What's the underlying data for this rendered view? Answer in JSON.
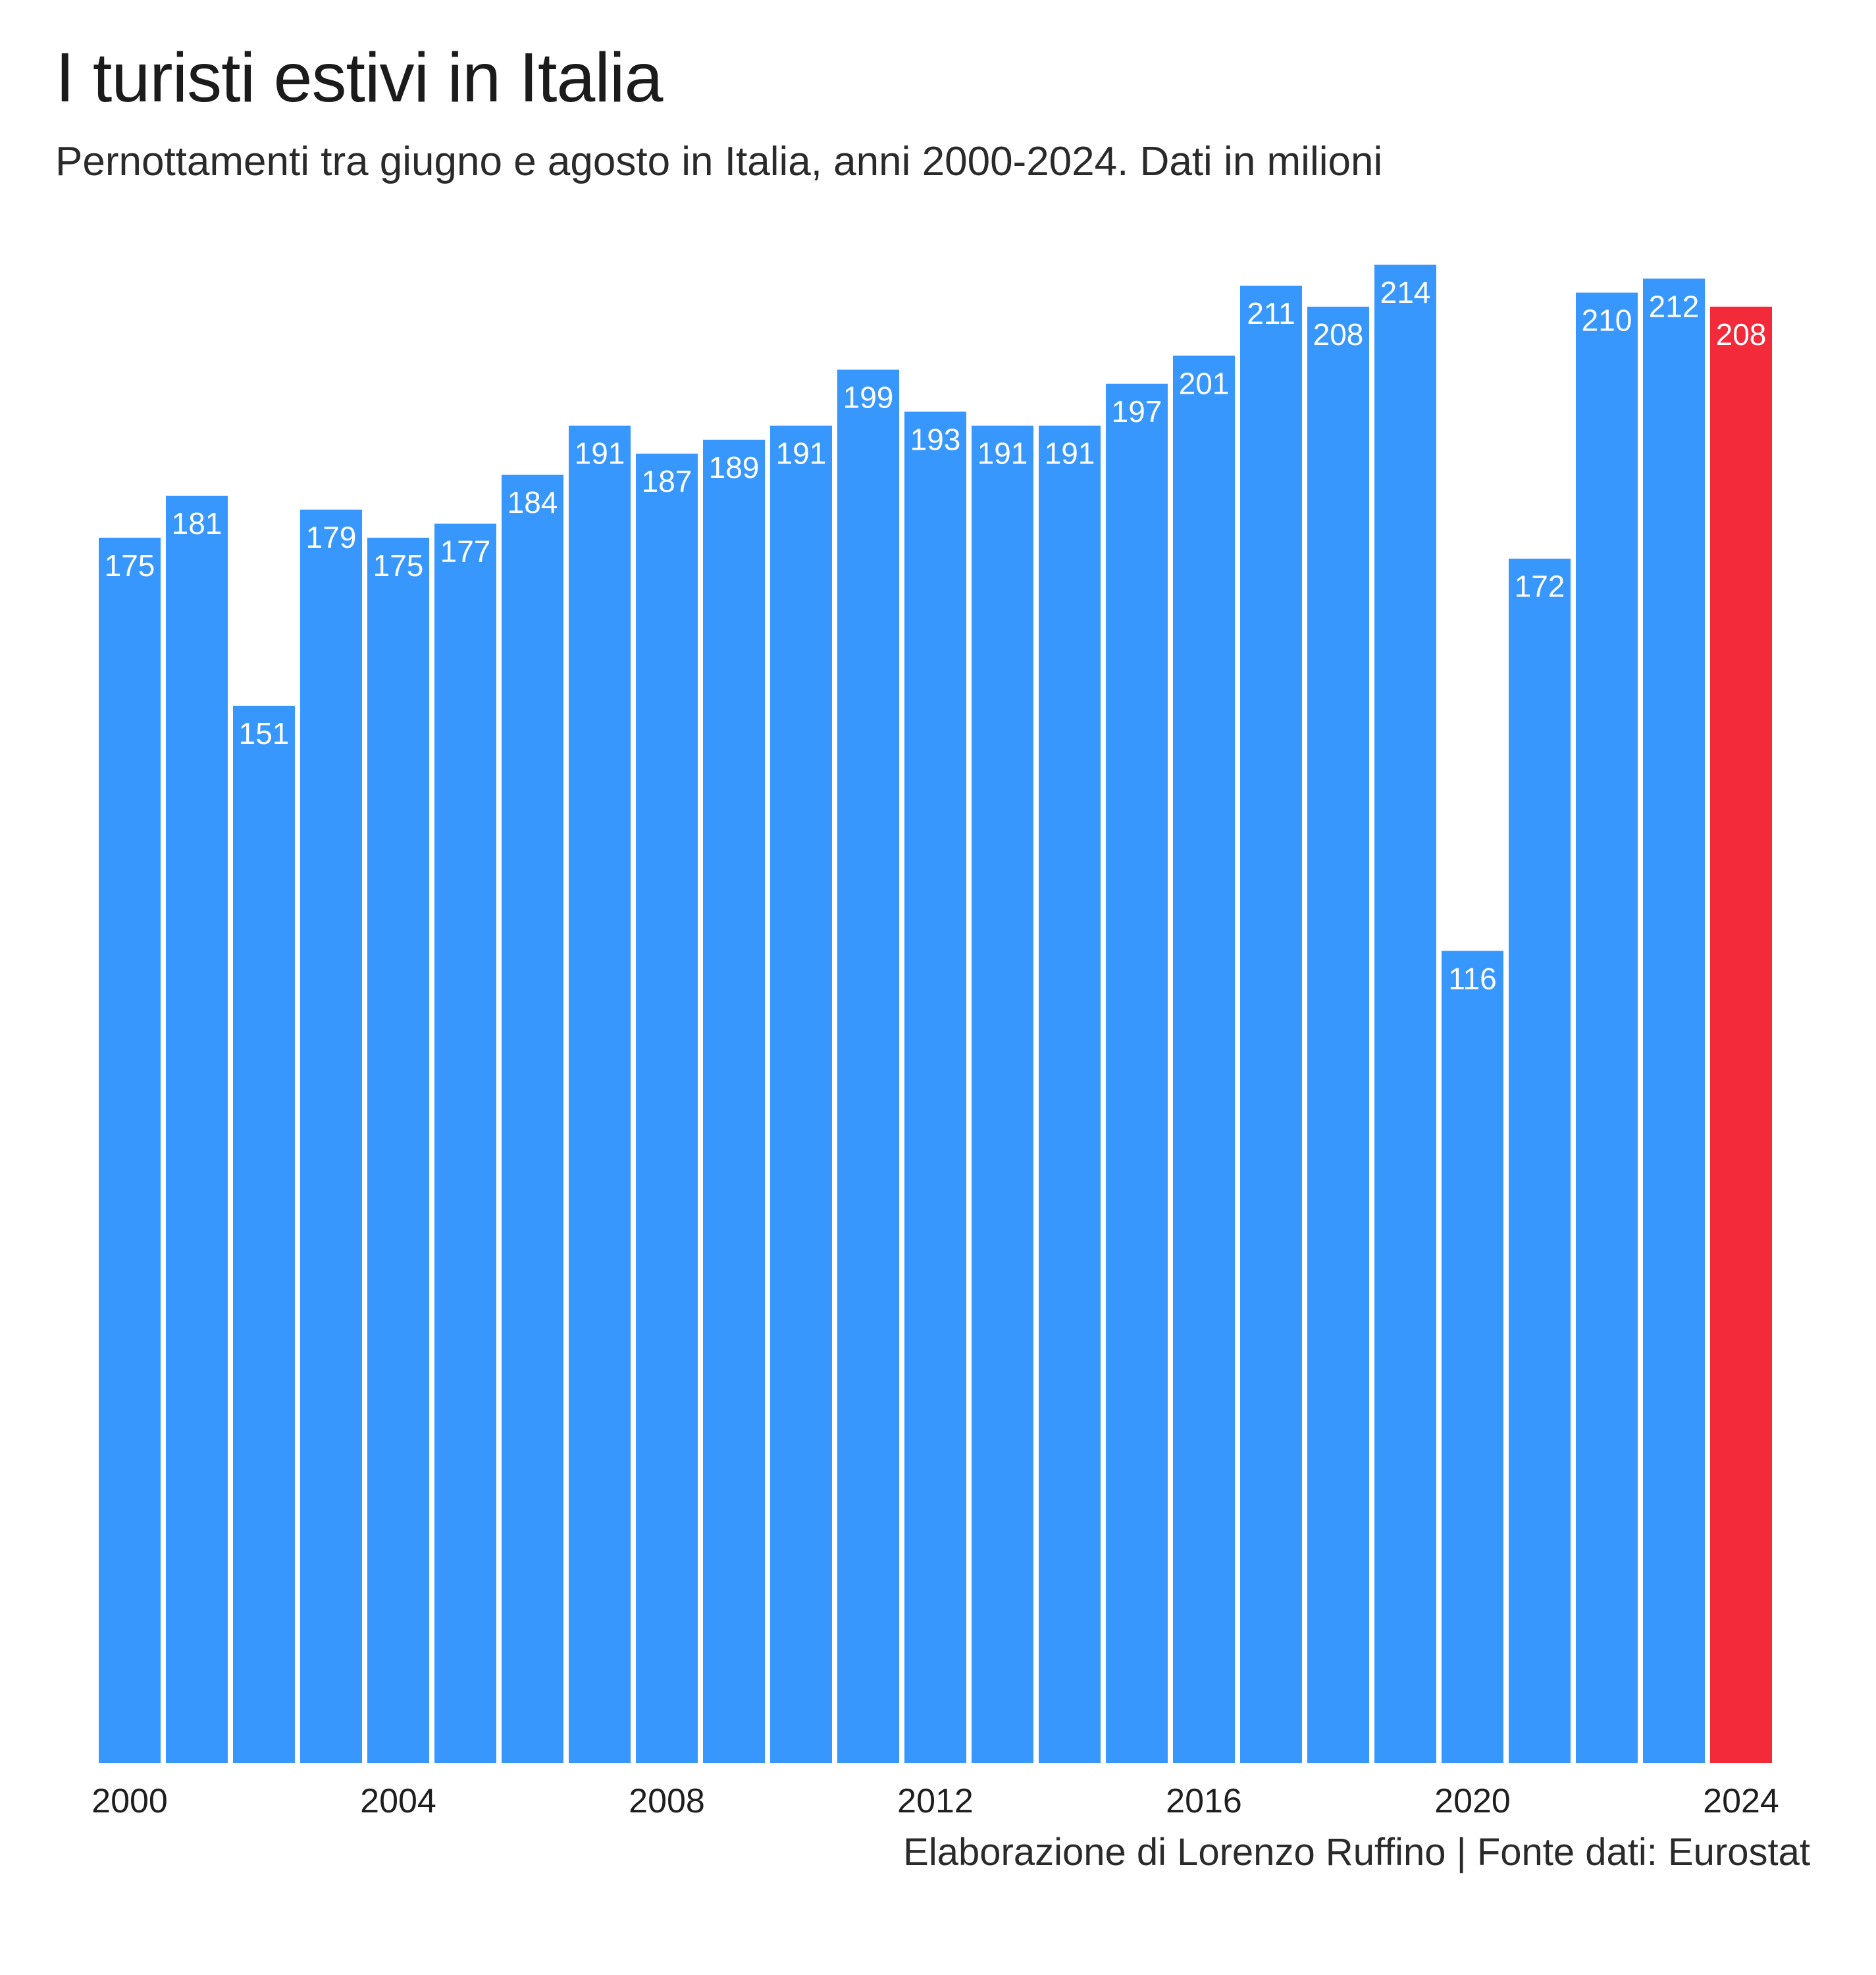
{
  "chart_data": {
    "type": "bar",
    "title": "I turisti estivi in Italia",
    "subtitle": "Pernottamenti tra giugno e agosto in Italia, anni 2000-2024. Dati in milioni",
    "categories": [
      "2000",
      "2001",
      "2002",
      "2003",
      "2004",
      "2005",
      "2006",
      "2007",
      "2008",
      "2009",
      "2010",
      "2011",
      "2012",
      "2013",
      "2014",
      "2015",
      "2016",
      "2017",
      "2018",
      "2019",
      "2020",
      "2021",
      "2022",
      "2023",
      "2024"
    ],
    "values": [
      175,
      181,
      151,
      179,
      175,
      177,
      184,
      191,
      187,
      189,
      191,
      199,
      193,
      191,
      191,
      197,
      201,
      211,
      208,
      214,
      116,
      172,
      210,
      212,
      208
    ],
    "x_tick_labels": [
      "2000",
      "2004",
      "2008",
      "2012",
      "2016",
      "2020",
      "2024"
    ],
    "ylim": [
      0,
      214
    ],
    "xlabel": "",
    "ylabel": "",
    "grid": false,
    "highlight_category": "2024",
    "colors": {
      "bar": "#3797fc",
      "highlight": "#f22a3a",
      "label": "#ffffff",
      "tick": "#1e1e1e"
    },
    "caption": "Elaborazione di Lorenzo Ruffino | Fonte dati: Eurostat"
  }
}
